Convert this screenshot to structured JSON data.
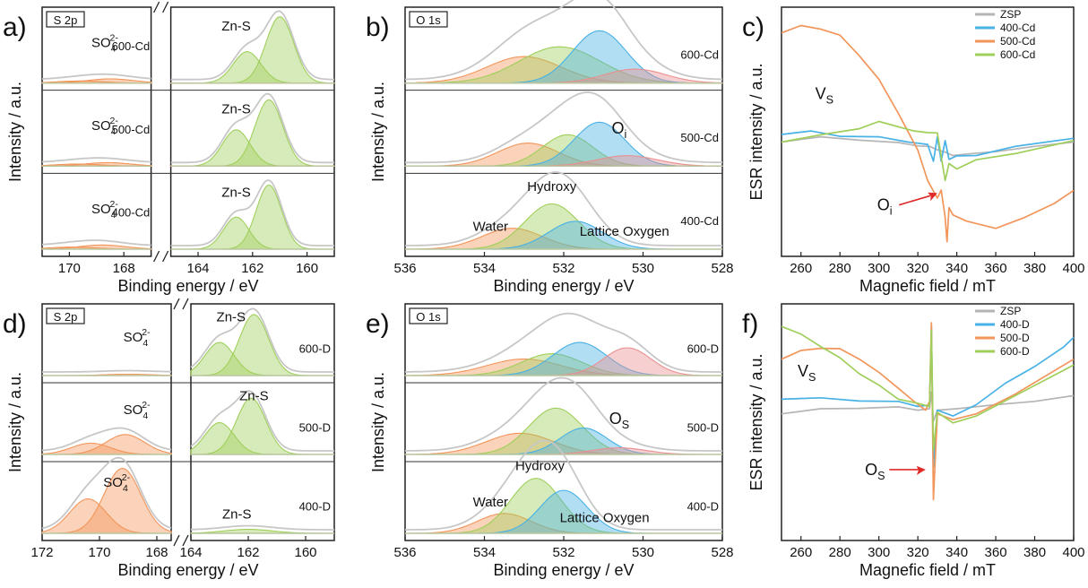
{
  "colors": {
    "envelope": "#c7c7c7",
    "green": "#9fcf5a",
    "orange": "#f2955a",
    "blue": "#48b1e5",
    "red": "#ea8f8f",
    "gray": "#b5b5b5",
    "arrow": "#e02a2a"
  },
  "chart_data": [
    {
      "panel": "a)",
      "type": "line",
      "tag": "S 2p",
      "xlabel": "Binding energy / eV",
      "ylabel": "Intensity / a.u.",
      "xlim": [
        171,
        159
      ],
      "axis_break": [
        167,
        165
      ],
      "xticks": [
        170,
        168,
        164,
        162,
        160
      ],
      "stacks": [
        {
          "sample": "600-Cd",
          "labels": [
            "SO₄²⁻",
            "Zn-S"
          ],
          "peaks": [
            {
              "name": "Zn-S 2p3/2",
              "center": 161.0,
              "amplitude": 0.95,
              "fwhm": 1.2,
              "color": "green"
            },
            {
              "name": "Zn-S 2p1/2",
              "center": 162.2,
              "amplitude": 0.45,
              "fwhm": 1.2,
              "color": "green"
            },
            {
              "name": "SO4 2-",
              "center": 168.5,
              "amplitude": 0.06,
              "fwhm": 2.0,
              "color": "orange"
            },
            {
              "name": "SO4 2-",
              "center": 169.6,
              "amplitude": 0.03,
              "fwhm": 2.0,
              "color": "orange"
            }
          ]
        },
        {
          "sample": "500-Cd",
          "labels": [
            "SO₄²⁻",
            "Zn-S"
          ],
          "peaks": [
            {
              "name": "Zn-S 2p3/2",
              "center": 161.4,
              "amplitude": 0.95,
              "fwhm": 1.2,
              "color": "green"
            },
            {
              "name": "Zn-S 2p1/2",
              "center": 162.6,
              "amplitude": 0.52,
              "fwhm": 1.2,
              "color": "green"
            },
            {
              "name": "SO4 2-",
              "center": 168.6,
              "amplitude": 0.05,
              "fwhm": 2.0,
              "color": "orange"
            },
            {
              "name": "SO4 2-",
              "center": 169.7,
              "amplitude": 0.03,
              "fwhm": 2.0,
              "color": "orange"
            }
          ]
        },
        {
          "sample": "400-Cd",
          "labels": [
            "SO₄²⁻",
            "Zn-S"
          ],
          "peaks": [
            {
              "name": "Zn-S 2p3/2",
              "center": 161.4,
              "amplitude": 0.92,
              "fwhm": 1.1,
              "color": "green"
            },
            {
              "name": "Zn-S 2p1/2",
              "center": 162.6,
              "amplitude": 0.46,
              "fwhm": 1.1,
              "color": "green"
            },
            {
              "name": "SO4 2-",
              "center": 168.8,
              "amplitude": 0.06,
              "fwhm": 2.0,
              "color": "orange"
            },
            {
              "name": "SO4 2-",
              "center": 169.9,
              "amplitude": 0.03,
              "fwhm": 2.0,
              "color": "orange"
            }
          ]
        }
      ]
    },
    {
      "panel": "b)",
      "type": "line",
      "tag": "O 1s",
      "xlabel": "Binding energy / eV",
      "ylabel": "Intensity / a.u.",
      "xlim": [
        536,
        528
      ],
      "xticks": [
        536,
        534,
        532,
        530,
        528
      ],
      "stacks": [
        {
          "sample": "600-Cd",
          "labels": [],
          "peaks": [
            {
              "name": "Water",
              "center": 533.0,
              "amplitude": 0.38,
              "fwhm": 2.2,
              "color": "orange"
            },
            {
              "name": "Hydroxy",
              "center": 532.1,
              "amplitude": 0.52,
              "fwhm": 2.4,
              "color": "green"
            },
            {
              "name": "Lattice Oxygen",
              "center": 531.1,
              "amplitude": 0.75,
              "fwhm": 1.6,
              "color": "blue"
            },
            {
              "name": "Oi",
              "center": 530.2,
              "amplitude": 0.2,
              "fwhm": 1.8,
              "color": "red"
            }
          ]
        },
        {
          "sample": "500-Cd",
          "labels": [
            "Oᵢ"
          ],
          "peaks": [
            {
              "name": "Water",
              "center": 532.9,
              "amplitude": 0.33,
              "fwhm": 1.8,
              "color": "orange"
            },
            {
              "name": "Hydroxy",
              "center": 531.9,
              "amplitude": 0.45,
              "fwhm": 1.5,
              "color": "green"
            },
            {
              "name": "Lattice Oxygen",
              "center": 531.1,
              "amplitude": 0.63,
              "fwhm": 1.5,
              "color": "blue"
            },
            {
              "name": "Oi",
              "center": 530.4,
              "amplitude": 0.15,
              "fwhm": 1.8,
              "color": "red"
            }
          ]
        },
        {
          "sample": "400-Cd",
          "labels": [
            "Water",
            "Hydroxy",
            "Lattice Oxygen"
          ],
          "peaks": [
            {
              "name": "Water",
              "center": 533.3,
              "amplitude": 0.3,
              "fwhm": 1.8,
              "color": "orange"
            },
            {
              "name": "Hydroxy",
              "center": 532.3,
              "amplitude": 0.65,
              "fwhm": 1.6,
              "color": "green"
            },
            {
              "name": "Lattice Oxygen",
              "center": 531.7,
              "amplitude": 0.4,
              "fwhm": 1.6,
              "color": "blue"
            }
          ]
        }
      ]
    },
    {
      "panel": "c)",
      "type": "line",
      "xlabel": "Magnefic field / mT",
      "ylabel": "ESR intensity / a.u.",
      "xlim": [
        250,
        400
      ],
      "xticks": [
        260,
        280,
        300,
        320,
        340,
        360,
        380,
        400
      ],
      "legend_position": "top-right",
      "series": [
        {
          "name": "ZSP",
          "color": "gray",
          "x": [
            250,
            270,
            290,
            310,
            320,
            326,
            330,
            334,
            338,
            345,
            360,
            380,
            400
          ],
          "y": [
            0.4,
            0.42,
            0.41,
            0.39,
            0.38,
            0.37,
            0.36,
            0.34,
            0.33,
            0.33,
            0.35,
            0.37,
            0.4
          ]
        },
        {
          "name": "400-Cd",
          "color": "blue",
          "x": [
            250,
            265,
            280,
            300,
            315,
            325,
            328,
            330,
            332,
            334,
            336,
            340,
            350,
            370,
            400
          ],
          "y": [
            0.44,
            0.45,
            0.43,
            0.42,
            0.4,
            0.38,
            0.3,
            0.42,
            0.3,
            0.4,
            0.31,
            0.32,
            0.33,
            0.37,
            0.42
          ]
        },
        {
          "name": "500-Cd",
          "color": "orange",
          "x": [
            250,
            260,
            270,
            280,
            290,
            300,
            310,
            320,
            325,
            330,
            332,
            334,
            335,
            336,
            338,
            345,
            360,
            375,
            390,
            400
          ],
          "y": [
            0.97,
            1.0,
            0.99,
            0.95,
            0.85,
            0.72,
            0.55,
            0.35,
            0.2,
            0.1,
            0.15,
            0.0,
            -0.12,
            0.05,
            0.02,
            -0.02,
            -0.05,
            0.0,
            0.08,
            0.14
          ]
        },
        {
          "name": "600-Cd",
          "color": "green",
          "x": [
            250,
            270,
            290,
            300,
            310,
            318,
            325,
            330,
            334,
            336,
            340,
            350,
            370,
            400
          ],
          "y": [
            0.4,
            0.43,
            0.47,
            0.5,
            0.48,
            0.45,
            0.45,
            0.44,
            0.2,
            0.28,
            0.26,
            0.3,
            0.34,
            0.4
          ]
        }
      ],
      "annotations": [
        "Vₛ",
        "Oᵢ"
      ]
    },
    {
      "panel": "d)",
      "type": "line",
      "tag": "S 2p",
      "xlabel": "Binding energy / eV",
      "ylabel": "Intensity / a.u.",
      "xlim": [
        172,
        159
      ],
      "axis_break": [
        167.5,
        164
      ],
      "xticks": [
        172,
        170,
        168,
        164,
        162,
        160
      ],
      "stacks": [
        {
          "sample": "600-D",
          "labels": [
            "SO₄²⁻",
            "Zn-S"
          ],
          "peaks": [
            {
              "name": "Zn-S 2p3/2",
              "center": 161.8,
              "amplitude": 0.92,
              "fwhm": 1.2,
              "color": "green"
            },
            {
              "name": "Zn-S 2p1/2",
              "center": 163.0,
              "amplitude": 0.5,
              "fwhm": 1.2,
              "color": "green"
            },
            {
              "name": "SO4 2-",
              "center": 169.0,
              "amplitude": 0.02,
              "fwhm": 2.0,
              "color": "orange"
            }
          ]
        },
        {
          "sample": "500-D",
          "labels": [
            "SO₄²⁻",
            "Zn-S"
          ],
          "peaks": [
            {
              "name": "Zn-S 2p3/2",
              "center": 161.9,
              "amplitude": 0.85,
              "fwhm": 1.2,
              "color": "green"
            },
            {
              "name": "Zn-S 2p1/2",
              "center": 163.0,
              "amplitude": 0.48,
              "fwhm": 1.2,
              "color": "green"
            },
            {
              "name": "SO4 2-",
              "center": 169.1,
              "amplitude": 0.3,
              "fwhm": 1.6,
              "color": "orange"
            },
            {
              "name": "SO4 2-",
              "center": 170.3,
              "amplitude": 0.17,
              "fwhm": 1.6,
              "color": "orange"
            }
          ]
        },
        {
          "sample": "400-D",
          "labels": [
            "SO₄²⁻",
            "Zn-S"
          ],
          "peaks": [
            {
              "name": "Zn-S",
              "center": 162.0,
              "amplitude": 0.06,
              "fwhm": 2.0,
              "color": "green"
            },
            {
              "name": "SO4 2-",
              "center": 169.2,
              "amplitude": 0.98,
              "fwhm": 1.5,
              "color": "orange"
            },
            {
              "name": "SO4 2-",
              "center": 170.4,
              "amplitude": 0.52,
              "fwhm": 1.5,
              "color": "orange"
            }
          ]
        }
      ]
    },
    {
      "panel": "e)",
      "type": "line",
      "tag": "O 1s",
      "xlabel": "Binding energy / eV",
      "ylabel": "Intensity / a.u.",
      "xlim": [
        536,
        528
      ],
      "xticks": [
        536,
        534,
        532,
        530,
        528
      ],
      "stacks": [
        {
          "sample": "600-D",
          "labels": [],
          "peaks": [
            {
              "name": "Water",
              "center": 533.0,
              "amplitude": 0.25,
              "fwhm": 2.2,
              "color": "orange"
            },
            {
              "name": "Hydroxy",
              "center": 532.3,
              "amplitude": 0.33,
              "fwhm": 1.8,
              "color": "green"
            },
            {
              "name": "Lattice Oxygen",
              "center": 531.6,
              "amplitude": 0.5,
              "fwhm": 1.6,
              "color": "blue"
            },
            {
              "name": "Os",
              "center": 530.4,
              "amplitude": 0.42,
              "fwhm": 1.4,
              "color": "red"
            }
          ]
        },
        {
          "sample": "500-D",
          "labels": [
            "Oₛ"
          ],
          "peaks": [
            {
              "name": "Water",
              "center": 533.1,
              "amplitude": 0.32,
              "fwhm": 2.0,
              "color": "orange"
            },
            {
              "name": "Hydroxy",
              "center": 532.2,
              "amplitude": 0.7,
              "fwhm": 1.6,
              "color": "green"
            },
            {
              "name": "Lattice Oxygen",
              "center": 531.5,
              "amplitude": 0.4,
              "fwhm": 1.4,
              "color": "blue"
            },
            {
              "name": "Os",
              "center": 530.6,
              "amplitude": 0.1,
              "fwhm": 1.6,
              "color": "red"
            }
          ]
        },
        {
          "sample": "400-D",
          "labels": [
            "Water",
            "Hydroxy",
            "Lattice Oxygen"
          ],
          "peaks": [
            {
              "name": "Water",
              "center": 533.5,
              "amplitude": 0.3,
              "fwhm": 1.6,
              "color": "orange"
            },
            {
              "name": "Hydroxy",
              "center": 532.7,
              "amplitude": 0.83,
              "fwhm": 1.5,
              "color": "green"
            },
            {
              "name": "Lattice Oxygen",
              "center": 532.0,
              "amplitude": 0.65,
              "fwhm": 1.4,
              "color": "blue"
            }
          ]
        }
      ]
    },
    {
      "panel": "f)",
      "type": "line",
      "xlabel": "Magnefic field / mT",
      "ylabel": "ESR intensity / a.u.",
      "xlim": [
        250,
        400
      ],
      "xticks": [
        260,
        280,
        300,
        320,
        340,
        360,
        380,
        400
      ],
      "legend_position": "top-right",
      "series": [
        {
          "name": "ZSP",
          "color": "gray",
          "x": [
            250,
            270,
            290,
            310,
            320,
            326,
            327,
            328,
            330,
            340,
            360,
            380,
            400
          ],
          "y": [
            0.5,
            0.52,
            0.53,
            0.53,
            0.52,
            0.52,
            0.62,
            0.45,
            0.52,
            0.52,
            0.55,
            0.56,
            0.6
          ]
        },
        {
          "name": "400-D",
          "color": "blue",
          "x": [
            250,
            270,
            290,
            310,
            320,
            326,
            327,
            328,
            330,
            338,
            350,
            365,
            380,
            395,
            400
          ],
          "y": [
            0.58,
            0.58,
            0.57,
            0.56,
            0.54,
            0.54,
            0.98,
            0.2,
            0.52,
            0.48,
            0.55,
            0.66,
            0.76,
            0.86,
            0.92
          ]
        },
        {
          "name": "500-D",
          "color": "orange",
          "x": [
            250,
            260,
            270,
            280,
            290,
            300,
            310,
            318,
            324,
            326,
            327,
            328,
            330,
            338,
            350,
            370,
            400
          ],
          "y": [
            0.8,
            0.84,
            0.86,
            0.85,
            0.8,
            0.72,
            0.64,
            0.56,
            0.52,
            0.56,
            1.0,
            0.02,
            0.5,
            0.46,
            0.5,
            0.6,
            0.8
          ]
        },
        {
          "name": "600-D",
          "color": "green",
          "x": [
            250,
            260,
            270,
            280,
            290,
            300,
            310,
            320,
            326,
            327,
            328,
            330,
            338,
            350,
            370,
            400
          ],
          "y": [
            0.98,
            0.93,
            0.87,
            0.8,
            0.72,
            0.65,
            0.58,
            0.55,
            0.54,
            0.95,
            0.3,
            0.5,
            0.45,
            0.48,
            0.6,
            0.76
          ]
        }
      ],
      "annotations": [
        "Vₛ",
        "Oₛ"
      ]
    }
  ]
}
